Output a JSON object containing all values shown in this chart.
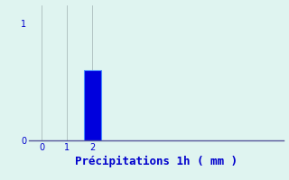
{
  "categories": [
    0,
    1,
    2
  ],
  "values": [
    0,
    0,
    0.6
  ],
  "bar_color": "#0000dd",
  "bar_edge_color": "#4488ff",
  "background_color": "#dff4f0",
  "xlabel": "Précipitations 1h ( mm )",
  "xlabel_color": "#0000cc",
  "xlabel_fontsize": 9,
  "tick_color": "#0000cc",
  "spine_color": "#555599",
  "grid_color": "#aabbbb",
  "ylim": [
    0,
    1.15
  ],
  "xlim": [
    -0.5,
    9.5
  ],
  "yticks": [
    0,
    1
  ],
  "xticks": [
    0,
    1,
    2
  ],
  "fig_width": 3.2,
  "fig_height": 2.0,
  "dpi": 100,
  "bar_width": 0.7
}
